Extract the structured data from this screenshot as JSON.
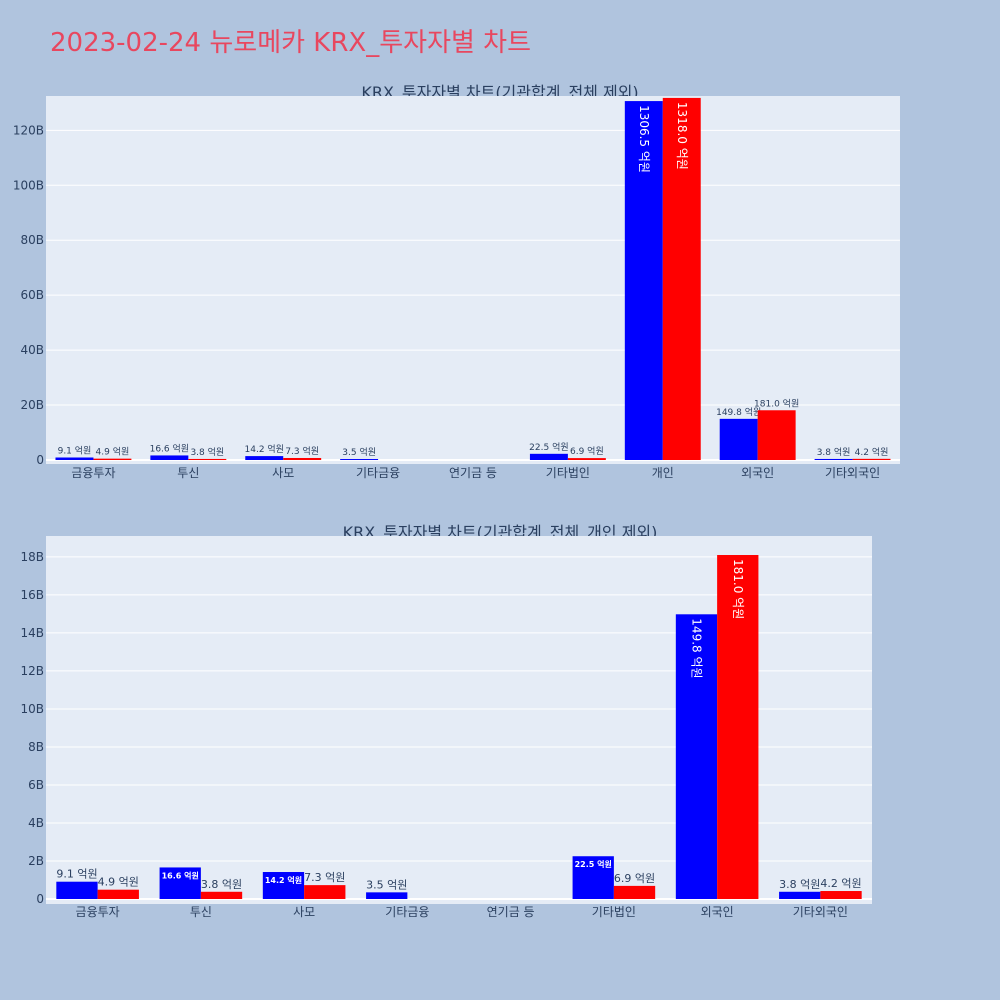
{
  "page": {
    "title": "2023-02-24 뉴로메카 KRX_투자자별 차트"
  },
  "colors": {
    "series_a": "#0000ff",
    "series_b": "#ff0000",
    "plot_bg": "#e5ecf6",
    "page_bg": "#b0c4de",
    "title": "#e8475f"
  },
  "chart_data": [
    {
      "type": "bar",
      "title": "KRX_투자자별 차트(기관합계_전체 제외)",
      "categories": [
        "금융투자",
        "투신",
        "사모",
        "기타금융",
        "연기금 등",
        "기타법인",
        "개인",
        "외국인",
        "기타외국인"
      ],
      "series": [
        {
          "values": [
            0.91,
            1.66,
            1.42,
            0.35,
            0,
            2.25,
            130.65,
            14.98,
            0.38
          ],
          "labels": [
            "9.1 억원",
            "16.6 억원",
            "14.2 억원",
            "3.5 억원",
            "",
            "22.5 억원",
            "1306.5 억원",
            "149.8 억원",
            "3.8 억원"
          ]
        },
        {
          "values": [
            0.49,
            0.38,
            0.73,
            0,
            0,
            0.69,
            131.8,
            18.1,
            0.42
          ],
          "labels": [
            "4.9 억원",
            "3.8 억원",
            "7.3 억원",
            "",
            "",
            "6.9 억원",
            "1318.0 억원",
            "181.0 억원",
            "4.2 억원"
          ]
        }
      ],
      "y_unit": "B",
      "yticks": [
        0,
        20,
        40,
        60,
        80,
        100,
        120
      ],
      "ylim": [
        0,
        132.5
      ],
      "grid": true,
      "legend": "none"
    },
    {
      "type": "bar",
      "title": "KRX_투자자별 차트(기관합계_전체_개인 제외)",
      "categories": [
        "금융투자",
        "투신",
        "사모",
        "기타금융",
        "연기금 등",
        "기타법인",
        "외국인",
        "기타외국인"
      ],
      "series": [
        {
          "values": [
            0.91,
            1.66,
            1.42,
            0.35,
            0,
            2.25,
            14.98,
            0.38
          ],
          "labels": [
            "9.1 억원",
            "16.6 억원",
            "14.2 억원",
            "3.5 억원",
            "",
            "22.5 억원",
            "149.8 억원",
            "3.8 억원"
          ]
        },
        {
          "values": [
            0.49,
            0.38,
            0.73,
            0,
            0,
            0.69,
            18.1,
            0.42
          ],
          "labels": [
            "4.9 억원",
            "3.8 억원",
            "7.3 억원",
            "",
            "",
            "6.9 억원",
            "181.0 억원",
            "4.2 억원"
          ]
        }
      ],
      "y_unit": "B",
      "yticks": [
        0,
        2,
        4,
        6,
        8,
        10,
        12,
        14,
        16,
        18
      ],
      "ylim": [
        0,
        19.1
      ],
      "grid": true,
      "legend": "none"
    }
  ]
}
